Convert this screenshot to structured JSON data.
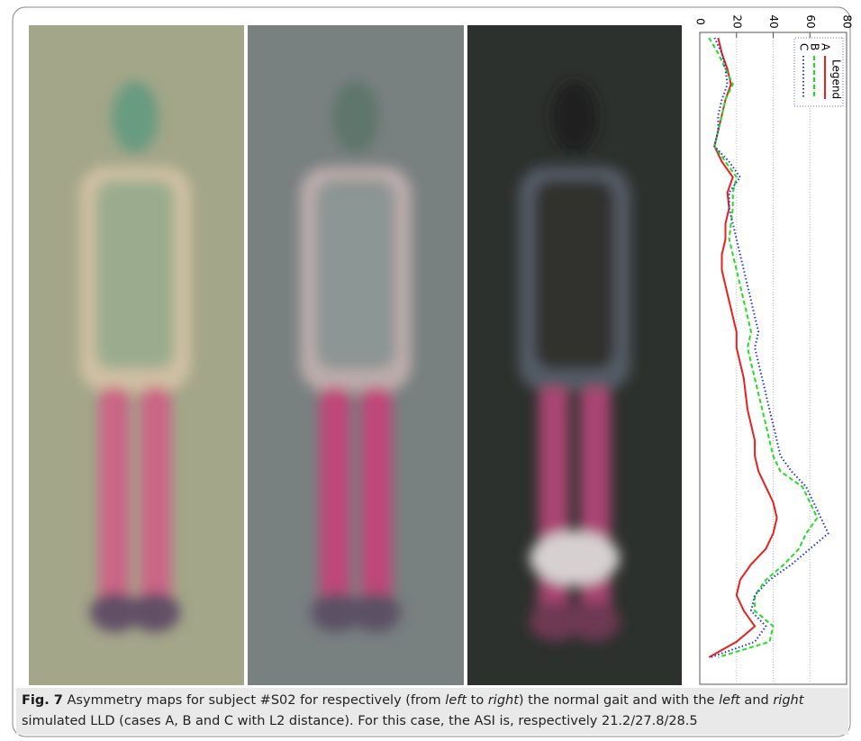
{
  "chart_data": {
    "type": "line",
    "legend_title": "Legend",
    "legend": "top-right",
    "xlim": [
      0,
      80
    ],
    "xticks": [
      0,
      20,
      40,
      60,
      80
    ],
    "grid": true,
    "series": [
      {
        "name": "A",
        "color": "#e8201c",
        "dash": "solid",
        "values": [
          10,
          12,
          15,
          17,
          14,
          12,
          10,
          8,
          12,
          18,
          15,
          16,
          14,
          14,
          12,
          12,
          14,
          16,
          18,
          20,
          20,
          22,
          24,
          25,
          26,
          28,
          30,
          30,
          32,
          36,
          40,
          42,
          40,
          36,
          28,
          22,
          20,
          24,
          30,
          20,
          5
        ]
      },
      {
        "name": "B",
        "color": "#22dd22",
        "dash": "dashed",
        "values": [
          5,
          10,
          14,
          18,
          14,
          12,
          10,
          8,
          14,
          20,
          18,
          18,
          17,
          16,
          18,
          20,
          22,
          24,
          26,
          28,
          26,
          28,
          30,
          32,
          34,
          36,
          38,
          40,
          44,
          56,
          60,
          64,
          58,
          54,
          46,
          36,
          30,
          30,
          40,
          38,
          10
        ]
      },
      {
        "name": "C",
        "color": "#2233dd",
        "dash": "dotted",
        "values": [
          8,
          12,
          14,
          15,
          12,
          10,
          10,
          8,
          16,
          22,
          16,
          16,
          18,
          20,
          22,
          24,
          26,
          28,
          30,
          32,
          30,
          32,
          34,
          36,
          38,
          40,
          42,
          44,
          50,
          58,
          62,
          66,
          70,
          60,
          50,
          38,
          30,
          28,
          36,
          30,
          6
        ]
      }
    ]
  },
  "caption": {
    "label": "Fig. 7",
    "parts": [
      " Asymmetry maps for subject #S02 for respectively (from ",
      "left",
      " to ",
      "right",
      ") the normal gait and with the ",
      "left",
      " and ",
      "right",
      " simulated LLD (cases A, B and C with L2 distance). For this case, the ASI is, respectively 21.2/27.8/28.5"
    ]
  }
}
